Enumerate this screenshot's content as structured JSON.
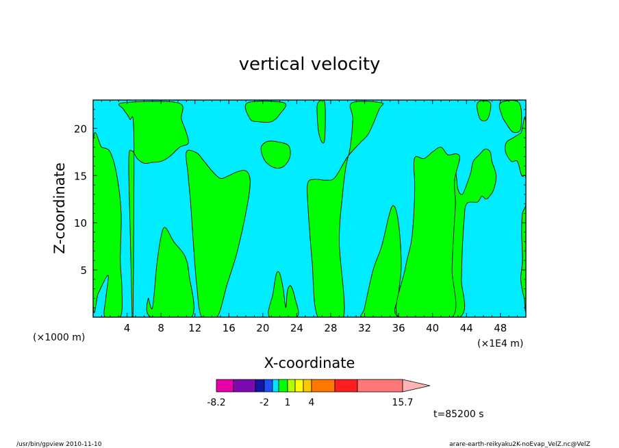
{
  "chart_data": {
    "type": "heatmap",
    "title": "vertical velocity",
    "xlabel": "X-coordinate",
    "ylabel": "Z-coordinate",
    "x_unit_left": "(×1000 m)",
    "x_unit_right": "(×1E4 m)",
    "xlim": [
      0,
      51
    ],
    "ylim": [
      0,
      23
    ],
    "x_ticks": [
      4,
      8,
      12,
      16,
      20,
      24,
      28,
      32,
      36,
      40,
      44,
      48
    ],
    "y_ticks": [
      5,
      10,
      15,
      20
    ],
    "time_label": "t=85200 s",
    "colorbar": {
      "levels": [
        -8.2,
        -6,
        -4,
        -2,
        -1,
        0,
        1,
        2,
        3,
        4,
        7,
        10,
        15.7
      ],
      "tick_labels": [
        "-8.2",
        "-2",
        "1",
        "4",
        "15.7"
      ],
      "colors": [
        "#e600a8",
        "#7d0ab0",
        "#1414a5",
        "#1e50ff",
        "#00e6ff",
        "#00ff00",
        "#b4ff00",
        "#ffff00",
        "#ffc800",
        "#ff7800",
        "#ff1e1e",
        "#ff7878",
        "#ffb4b4"
      ]
    },
    "field_colors": {
      "negative": "#00ecff",
      "positive": "#00ff00"
    },
    "positive_regions": [
      {
        "name": "updraft-1",
        "points": [
          [
            0,
            18.4
          ],
          [
            1,
            18
          ],
          [
            2,
            17.5
          ],
          [
            2.8,
            15
          ],
          [
            3.3,
            11
          ],
          [
            3.2,
            6
          ],
          [
            3.4,
            3
          ],
          [
            3.2,
            0
          ],
          [
            1.4,
            0
          ],
          [
            1.5,
            2
          ],
          [
            1.8,
            4.3
          ],
          [
            1.4,
            4
          ],
          [
            0.6,
            2.5
          ],
          [
            0,
            1.5
          ]
        ]
      },
      {
        "name": "updraft-2",
        "points": [
          [
            3.5,
            22.7
          ],
          [
            10,
            22.7
          ],
          [
            10.4,
            21
          ],
          [
            11,
            19.5
          ],
          [
            11.2,
            18.4
          ],
          [
            10.2,
            18
          ],
          [
            9,
            17
          ],
          [
            8,
            16.5
          ],
          [
            7,
            16.4
          ],
          [
            6,
            16.3
          ],
          [
            5.2,
            16.8
          ],
          [
            4.6,
            17.6
          ],
          [
            4.2,
            16.6
          ],
          [
            4.4,
            8
          ],
          [
            4.6,
            0
          ],
          [
            4.7,
            0
          ],
          [
            4.8,
            19.2
          ],
          [
            4.3,
            21
          ],
          [
            3.6,
            22
          ]
        ]
      },
      {
        "name": "updraft-3",
        "points": [
          [
            7,
            1
          ],
          [
            7.5,
            5.5
          ],
          [
            8,
            8.5
          ],
          [
            8.5,
            9.5
          ],
          [
            9.5,
            8
          ],
          [
            10.8,
            6.5
          ],
          [
            11.3,
            4.5
          ],
          [
            11.6,
            0
          ],
          [
            6.8,
            0
          ],
          [
            6.5,
            2
          ]
        ]
      },
      {
        "name": "updraft-4",
        "points": [
          [
            11,
            17.5
          ],
          [
            12.2,
            17.4
          ],
          [
            13,
            16.6
          ],
          [
            14,
            15.5
          ],
          [
            15,
            14.7
          ],
          [
            16,
            15
          ],
          [
            17,
            15.4
          ],
          [
            18,
            15.5
          ],
          [
            18.5,
            14.5
          ],
          [
            18.2,
            12
          ],
          [
            17,
            7
          ],
          [
            15.8,
            3.5
          ],
          [
            14.6,
            0
          ],
          [
            12.8,
            0
          ],
          [
            12.2,
            3.5
          ],
          [
            11.8,
            8
          ],
          [
            11.5,
            12
          ],
          [
            11.2,
            15
          ]
        ]
      },
      {
        "name": "updraft-5",
        "points": [
          [
            18.2,
            22.7
          ],
          [
            22.5,
            22.7
          ],
          [
            22,
            21.5
          ],
          [
            21,
            20.7
          ],
          [
            19.5,
            20.7
          ],
          [
            18.5,
            21
          ]
        ]
      },
      {
        "name": "updraft-6",
        "points": [
          [
            19.8,
            18
          ],
          [
            20.5,
            18.6
          ],
          [
            21.5,
            18.6
          ],
          [
            23,
            18.2
          ],
          [
            23.2,
            17
          ],
          [
            22.5,
            16
          ],
          [
            21.5,
            15.8
          ],
          [
            20.5,
            16.3
          ],
          [
            20,
            17
          ]
        ]
      },
      {
        "name": "updraft-7",
        "points": [
          [
            20.8,
            0
          ],
          [
            21.2,
            2.5
          ],
          [
            21.6,
            4.6
          ],
          [
            22,
            4.6
          ],
          [
            22.4,
            3
          ],
          [
            22.7,
            1
          ],
          [
            22.9,
            2.8
          ],
          [
            23.3,
            3.3
          ],
          [
            23.8,
            2
          ],
          [
            24,
            0
          ]
        ]
      },
      {
        "name": "updraft-8",
        "points": [
          [
            26.5,
            22.7
          ],
          [
            27.3,
            22.7
          ],
          [
            27.3,
            19
          ],
          [
            27,
            18.5
          ],
          [
            26.6,
            19.5
          ],
          [
            26.4,
            21.5
          ]
        ]
      },
      {
        "name": "updraft-9",
        "points": [
          [
            25.3,
            14.2
          ],
          [
            26.1,
            14.6
          ],
          [
            27.5,
            14.5
          ],
          [
            28.5,
            14.8
          ],
          [
            30,
            17
          ],
          [
            31.5,
            18.5
          ],
          [
            32.5,
            19.5
          ],
          [
            33.7,
            22
          ],
          [
            34,
            22.7
          ],
          [
            30.5,
            22.7
          ],
          [
            30.6,
            21
          ],
          [
            30.3,
            18
          ],
          [
            29.8,
            16
          ],
          [
            29.4,
            13
          ],
          [
            29,
            8
          ],
          [
            29.5,
            0
          ],
          [
            26.5,
            0
          ],
          [
            25.8,
            6
          ],
          [
            25.3,
            12
          ]
        ]
      },
      {
        "name": "updraft-10",
        "points": [
          [
            32,
            1
          ],
          [
            33,
            5
          ],
          [
            34,
            7.5
          ],
          [
            34.8,
            10.5
          ],
          [
            35.3,
            11.8
          ],
          [
            35.8,
            11
          ],
          [
            36.2,
            8
          ],
          [
            36.3,
            5
          ],
          [
            36,
            2.5
          ],
          [
            36,
            0
          ],
          [
            31.8,
            0
          ]
        ]
      },
      {
        "name": "updraft-11",
        "points": [
          [
            36,
            0
          ],
          [
            36.4,
            3
          ],
          [
            37.3,
            5.4
          ],
          [
            38.2,
            4.2
          ],
          [
            38.6,
            2
          ],
          [
            39.2,
            3.5
          ],
          [
            39.8,
            4.5
          ],
          [
            40.4,
            3.5
          ],
          [
            40.7,
            1
          ],
          [
            40.9,
            0.5
          ],
          [
            41,
            3.5
          ],
          [
            41.4,
            10
          ],
          [
            41.5,
            14
          ],
          [
            41,
            16.5
          ],
          [
            41.8,
            17
          ],
          [
            42.5,
            17
          ],
          [
            42.8,
            15
          ],
          [
            43,
            13.5
          ],
          [
            43.5,
            13
          ],
          [
            44,
            14
          ],
          [
            44.5,
            15.3
          ],
          [
            44.8,
            16.5
          ],
          [
            45.5,
            17.2
          ],
          [
            46.2,
            17.8
          ],
          [
            46.8,
            17.5
          ],
          [
            47,
            16.5
          ],
          [
            47.5,
            15
          ],
          [
            47.2,
            13.5
          ],
          [
            46.7,
            12.8
          ],
          [
            46.3,
            12.5
          ],
          [
            45.8,
            12.8
          ],
          [
            45.3,
            12.2
          ],
          [
            44,
            12
          ],
          [
            43.7,
            10
          ],
          [
            43.5,
            7
          ],
          [
            43.4,
            4
          ],
          [
            43.2,
            0
          ]
        ]
      },
      {
        "name": "updraft-12",
        "points": [
          [
            38,
            17
          ],
          [
            39,
            16.8
          ],
          [
            40,
            17.5
          ],
          [
            41,
            18
          ],
          [
            41.8,
            17.2
          ],
          [
            42.8,
            17.3
          ],
          [
            43.2,
            16.8
          ],
          [
            42.6,
            14.5
          ],
          [
            42.7,
            12
          ],
          [
            42.5,
            9
          ],
          [
            42.3,
            5
          ],
          [
            42.3,
            0
          ],
          [
            36,
            0
          ],
          [
            36.8,
            5.2
          ],
          [
            37.5,
            8
          ],
          [
            37.8,
            11
          ],
          [
            37.9,
            14
          ],
          [
            37.8,
            16
          ]
        ]
      },
      {
        "name": "updraft-13",
        "points": [
          [
            45.3,
            22.7
          ],
          [
            46.8,
            22.7
          ],
          [
            46.5,
            21
          ],
          [
            45.6,
            21
          ]
        ]
      },
      {
        "name": "updraft-14",
        "points": [
          [
            48,
            22.7
          ],
          [
            50.2,
            22.7
          ],
          [
            50.4,
            20
          ],
          [
            49.5,
            19.6
          ],
          [
            48.7,
            20.5
          ],
          [
            48.2,
            21.3
          ]
        ]
      },
      {
        "name": "updraft-15",
        "points": [
          [
            48.6,
            17.5
          ],
          [
            49.3,
            16.5
          ],
          [
            50,
            16.5
          ],
          [
            50.5,
            15
          ],
          [
            51,
            14.8
          ],
          [
            51,
            12
          ],
          [
            50.6,
            11
          ],
          [
            50.5,
            9
          ],
          [
            50.6,
            6
          ],
          [
            50.4,
            4
          ],
          [
            50.8,
            2
          ],
          [
            51,
            2
          ],
          [
            51,
            20
          ],
          [
            50.4,
            19.5
          ],
          [
            49.5,
            19
          ],
          [
            48.7,
            18.5
          ]
        ]
      }
    ]
  },
  "footer": {
    "left": "/usr/bin/gpview   2010-11-10",
    "right": "arare-earth-reikyaku2K-noEvap_VelZ.nc@VelZ"
  }
}
